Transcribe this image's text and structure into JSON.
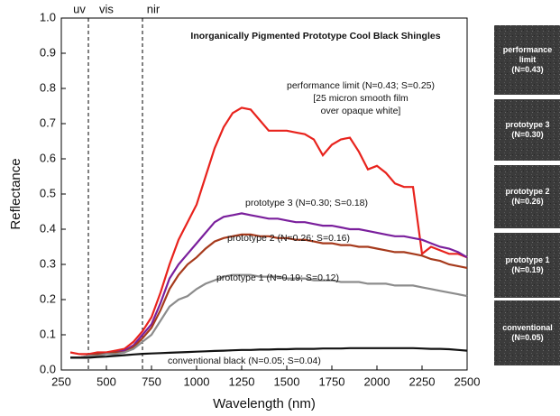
{
  "chart_data": {
    "type": "line",
    "title": "Inorganically Pigmented Prototype Cool Black Shingles",
    "xlabel": "Wavelength (nm)",
    "ylabel": "Reflectance",
    "regions": [
      {
        "label": "uv"
      },
      {
        "label": "vis"
      },
      {
        "label": "nir"
      }
    ],
    "dividers": [
      400,
      700
    ],
    "annotation": [
      "[25 micron smooth film",
      "over opaque white]"
    ],
    "xlim": [
      250,
      2500
    ],
    "xticks": [
      250,
      500,
      750,
      1000,
      1250,
      1500,
      1750,
      2000,
      2250,
      2500
    ],
    "ylim": [
      0,
      1
    ],
    "yticks": [
      {
        "value": 0,
        "label": "0.0"
      },
      0.1,
      0.2,
      0.3,
      0.4,
      0.5,
      0.6,
      0.7,
      0.8,
      0.9,
      {
        "value": 1,
        "label": "1.0"
      }
    ],
    "x": [
      300,
      350,
      400,
      450,
      500,
      550,
      600,
      650,
      700,
      750,
      800,
      850,
      900,
      950,
      1000,
      1050,
      1100,
      1150,
      1200,
      1250,
      1300,
      1350,
      1400,
      1450,
      1500,
      1550,
      1600,
      1650,
      1700,
      1750,
      1800,
      1850,
      1900,
      1950,
      2000,
      2050,
      2100,
      2150,
      2200,
      2250,
      2300,
      2350,
      2400,
      2450,
      2500
    ],
    "series": [
      {
        "name": "performance limit (N=0.43; S=0.25)",
        "color": "#e8231d",
        "values": [
          0.05,
          0.045,
          0.045,
          0.05,
          0.05,
          0.055,
          0.06,
          0.08,
          0.11,
          0.15,
          0.22,
          0.3,
          0.37,
          0.42,
          0.47,
          0.55,
          0.63,
          0.69,
          0.73,
          0.745,
          0.74,
          0.71,
          0.68,
          0.68,
          0.68,
          0.675,
          0.67,
          0.655,
          0.61,
          0.64,
          0.655,
          0.66,
          0.62,
          0.57,
          0.58,
          0.56,
          0.53,
          0.52,
          0.52,
          0.33,
          0.35,
          0.34,
          0.33,
          0.33,
          0.32
        ]
      },
      {
        "name": "prototype 3 (N=0.30; S=0.18)",
        "color": "#7a1f9c",
        "values": [
          0.035,
          0.035,
          0.04,
          0.045,
          0.045,
          0.05,
          0.055,
          0.07,
          0.1,
          0.13,
          0.19,
          0.26,
          0.3,
          0.33,
          0.36,
          0.39,
          0.42,
          0.435,
          0.44,
          0.445,
          0.44,
          0.435,
          0.43,
          0.43,
          0.425,
          0.42,
          0.42,
          0.415,
          0.41,
          0.41,
          0.405,
          0.4,
          0.4,
          0.395,
          0.39,
          0.385,
          0.38,
          0.38,
          0.375,
          0.37,
          0.36,
          0.35,
          0.345,
          0.335,
          0.32
        ]
      },
      {
        "name": "prototype 2 (N=0.26; S=0.16)",
        "color": "#a63a1c",
        "values": [
          0.035,
          0.035,
          0.04,
          0.045,
          0.045,
          0.05,
          0.05,
          0.065,
          0.09,
          0.12,
          0.17,
          0.23,
          0.27,
          0.3,
          0.32,
          0.345,
          0.365,
          0.375,
          0.38,
          0.385,
          0.385,
          0.38,
          0.38,
          0.375,
          0.375,
          0.37,
          0.37,
          0.365,
          0.36,
          0.36,
          0.355,
          0.355,
          0.35,
          0.35,
          0.345,
          0.34,
          0.335,
          0.335,
          0.33,
          0.325,
          0.315,
          0.31,
          0.3,
          0.295,
          0.29
        ]
      },
      {
        "name": "prototype 1 (N=0.19; S=0.12)",
        "color": "#8c8c8c",
        "values": [
          0.035,
          0.035,
          0.04,
          0.04,
          0.045,
          0.045,
          0.05,
          0.06,
          0.08,
          0.1,
          0.14,
          0.18,
          0.2,
          0.21,
          0.23,
          0.245,
          0.255,
          0.265,
          0.27,
          0.27,
          0.27,
          0.265,
          0.265,
          0.265,
          0.26,
          0.26,
          0.26,
          0.255,
          0.255,
          0.255,
          0.25,
          0.25,
          0.25,
          0.245,
          0.245,
          0.245,
          0.24,
          0.24,
          0.24,
          0.235,
          0.23,
          0.225,
          0.22,
          0.215,
          0.21
        ]
      },
      {
        "name": "conventional black (N=0.05; S=0.04)",
        "color": "#111111",
        "values": [
          0.035,
          0.035,
          0.035,
          0.037,
          0.038,
          0.04,
          0.042,
          0.044,
          0.046,
          0.047,
          0.048,
          0.049,
          0.05,
          0.051,
          0.052,
          0.053,
          0.054,
          0.055,
          0.056,
          0.057,
          0.057,
          0.058,
          0.058,
          0.059,
          0.059,
          0.06,
          0.06,
          0.06,
          0.061,
          0.061,
          0.061,
          0.062,
          0.062,
          0.062,
          0.062,
          0.062,
          0.062,
          0.062,
          0.062,
          0.061,
          0.06,
          0.06,
          0.059,
          0.057,
          0.055
        ]
      }
    ]
  },
  "panel": {
    "swatches": [
      {
        "lines": [
          "performance",
          "limit",
          "(N=0.43)"
        ]
      },
      {
        "lines": [
          "prototype 3",
          "(N=0.30)"
        ]
      },
      {
        "lines": [
          "prototype 2",
          "(N=0.26)"
        ]
      },
      {
        "lines": [
          "prototype 1",
          "(N=0.19)"
        ]
      },
      {
        "lines": [
          "conventional",
          "(N=0.05)"
        ]
      }
    ]
  }
}
